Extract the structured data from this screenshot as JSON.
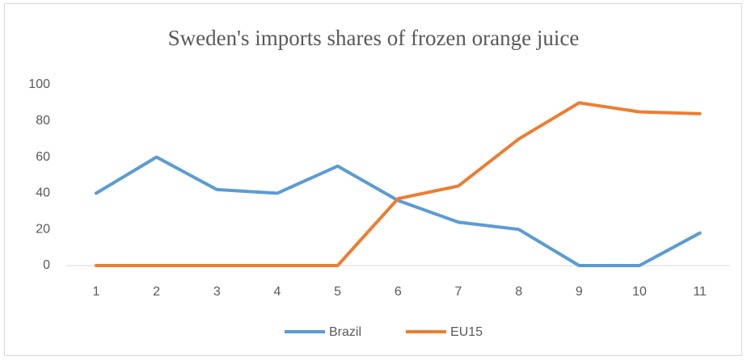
{
  "chart_data": {
    "type": "line",
    "title": "Sweden's imports shares of frozen orange juice",
    "categories": [
      "1",
      "2",
      "3",
      "4",
      "5",
      "6",
      "7",
      "8",
      "9",
      "10",
      "11"
    ],
    "series": [
      {
        "name": "Brazil",
        "color": "#5b9bd5",
        "values": [
          40,
          60,
          42,
          40,
          55,
          36,
          24,
          20,
          0,
          0,
          18
        ]
      },
      {
        "name": "EU15",
        "color": "#ed7d31",
        "values": [
          0,
          0,
          0,
          0,
          0,
          37,
          44,
          70,
          90,
          85,
          84
        ]
      }
    ],
    "ylim": [
      0,
      100
    ],
    "yticks": [
      0,
      20,
      40,
      60,
      80,
      100
    ],
    "grid": false,
    "legend": "bottom"
  }
}
